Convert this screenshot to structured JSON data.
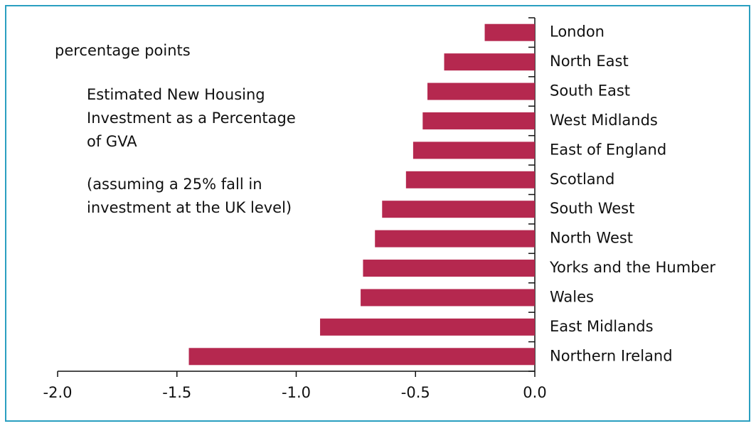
{
  "chart_data": {
    "type": "hbar",
    "unit_label": "percentage points",
    "title": "Estimated New Housing Investment as a Percentage of GVA",
    "subtitle": "(assuming a 25% fall in investment at the UK level)",
    "categories": [
      "London",
      "North East",
      "South East",
      "West Midlands",
      "East of England",
      "Scotland",
      "South West",
      "North West",
      "Yorks and the Humber",
      "Wales",
      "East Midlands",
      "Northern Ireland"
    ],
    "values": [
      -0.21,
      -0.38,
      -0.45,
      -0.47,
      -0.51,
      -0.54,
      -0.64,
      -0.67,
      -0.72,
      -0.73,
      -0.9,
      -1.45
    ],
    "color": "#b5284f",
    "xlim": [
      -2.0,
      0.0
    ],
    "xticks": [
      {
        "value": -2.0,
        "label": "-2.0"
      },
      {
        "value": -1.5,
        "label": "-1.5"
      },
      {
        "value": -1.0,
        "label": "-1.0"
      },
      {
        "value": -0.5,
        "label": "-0.5"
      },
      {
        "value": 0.0,
        "label": "0.0"
      }
    ],
    "grid": false
  }
}
